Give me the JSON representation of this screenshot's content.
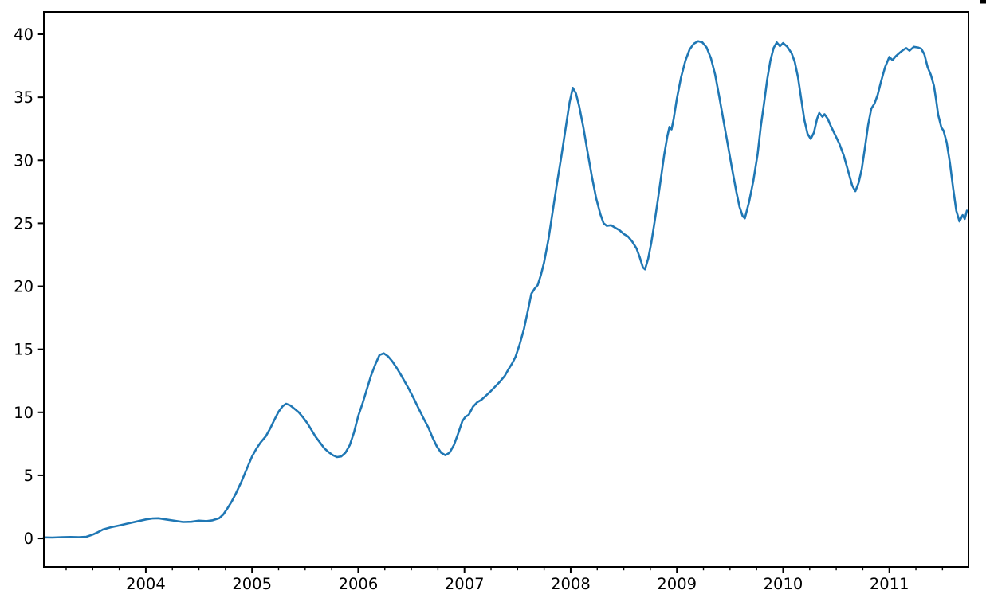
{
  "figure": {
    "background_color": "#ffffff",
    "spine_color": "#000000",
    "tick_color": "#000000",
    "corner_artifact_color": "#000000"
  },
  "chart_data": {
    "type": "line",
    "title": "",
    "xlabel": "",
    "ylabel": "",
    "grid": false,
    "legend": "none",
    "line_color": "#1f77b4",
    "line_width": 2.6,
    "xlim": [
      2003.04,
      2011.745
    ],
    "ylim": [
      -2.27,
      41.77
    ],
    "x_ticks": [
      2004,
      2005,
      2006,
      2007,
      2008,
      2009,
      2010,
      2011
    ],
    "x_tick_labels": [
      "2004",
      "2005",
      "2006",
      "2007",
      "2008",
      "2009",
      "2010",
      "2011"
    ],
    "x_minor_tick_interval": 0.25,
    "y_ticks": [
      0,
      5,
      10,
      15,
      20,
      25,
      30,
      35,
      40
    ],
    "y_tick_labels": [
      "0",
      "5",
      "10",
      "15",
      "20",
      "25",
      "30",
      "35",
      "40"
    ],
    "series": [
      {
        "name": "series-1",
        "points": [
          [
            2003.04,
            0.08
          ],
          [
            2003.12,
            0.07
          ],
          [
            2003.21,
            0.1
          ],
          [
            2003.29,
            0.11
          ],
          [
            2003.37,
            0.1
          ],
          [
            2003.44,
            0.13
          ],
          [
            2003.5,
            0.3
          ],
          [
            2003.55,
            0.5
          ],
          [
            2003.6,
            0.72
          ],
          [
            2003.67,
            0.88
          ],
          [
            2003.75,
            1.02
          ],
          [
            2003.83,
            1.18
          ],
          [
            2003.92,
            1.35
          ],
          [
            2004.0,
            1.5
          ],
          [
            2004.06,
            1.58
          ],
          [
            2004.12,
            1.6
          ],
          [
            2004.19,
            1.5
          ],
          [
            2004.27,
            1.4
          ],
          [
            2004.35,
            1.3
          ],
          [
            2004.43,
            1.32
          ],
          [
            2004.5,
            1.41
          ],
          [
            2004.57,
            1.37
          ],
          [
            2004.63,
            1.44
          ],
          [
            2004.69,
            1.6
          ],
          [
            2004.73,
            1.9
          ],
          [
            2004.77,
            2.4
          ],
          [
            2004.81,
            2.95
          ],
          [
            2004.85,
            3.6
          ],
          [
            2004.9,
            4.5
          ],
          [
            2004.95,
            5.5
          ],
          [
            2005.0,
            6.5
          ],
          [
            2005.04,
            7.1
          ],
          [
            2005.08,
            7.6
          ],
          [
            2005.13,
            8.1
          ],
          [
            2005.17,
            8.7
          ],
          [
            2005.21,
            9.4
          ],
          [
            2005.25,
            10.05
          ],
          [
            2005.29,
            10.5
          ],
          [
            2005.32,
            10.68
          ],
          [
            2005.36,
            10.55
          ],
          [
            2005.4,
            10.28
          ],
          [
            2005.44,
            10.0
          ],
          [
            2005.48,
            9.6
          ],
          [
            2005.52,
            9.15
          ],
          [
            2005.56,
            8.6
          ],
          [
            2005.6,
            8.05
          ],
          [
            2005.64,
            7.6
          ],
          [
            2005.68,
            7.15
          ],
          [
            2005.72,
            6.85
          ],
          [
            2005.76,
            6.6
          ],
          [
            2005.8,
            6.45
          ],
          [
            2005.84,
            6.5
          ],
          [
            2005.88,
            6.8
          ],
          [
            2005.92,
            7.4
          ],
          [
            2005.96,
            8.4
          ],
          [
            2006.0,
            9.7
          ],
          [
            2006.04,
            10.7
          ],
          [
            2006.08,
            11.8
          ],
          [
            2006.12,
            12.9
          ],
          [
            2006.16,
            13.8
          ],
          [
            2006.2,
            14.55
          ],
          [
            2006.24,
            14.68
          ],
          [
            2006.28,
            14.45
          ],
          [
            2006.32,
            14.05
          ],
          [
            2006.36,
            13.55
          ],
          [
            2006.4,
            13.0
          ],
          [
            2006.44,
            12.4
          ],
          [
            2006.48,
            11.8
          ],
          [
            2006.52,
            11.15
          ],
          [
            2006.56,
            10.45
          ],
          [
            2006.61,
            9.6
          ],
          [
            2006.66,
            8.8
          ],
          [
            2006.7,
            8.0
          ],
          [
            2006.74,
            7.3
          ],
          [
            2006.78,
            6.8
          ],
          [
            2006.82,
            6.6
          ],
          [
            2006.86,
            6.8
          ],
          [
            2006.9,
            7.4
          ],
          [
            2006.94,
            8.3
          ],
          [
            2006.98,
            9.3
          ],
          [
            2007.01,
            9.65
          ],
          [
            2007.04,
            9.8
          ],
          [
            2007.08,
            10.45
          ],
          [
            2007.12,
            10.8
          ],
          [
            2007.16,
            11.0
          ],
          [
            2007.2,
            11.3
          ],
          [
            2007.25,
            11.7
          ],
          [
            2007.29,
            12.05
          ],
          [
            2007.33,
            12.4
          ],
          [
            2007.38,
            12.9
          ],
          [
            2007.42,
            13.5
          ],
          [
            2007.45,
            13.9
          ],
          [
            2007.48,
            14.4
          ],
          [
            2007.52,
            15.4
          ],
          [
            2007.56,
            16.6
          ],
          [
            2007.6,
            18.2
          ],
          [
            2007.63,
            19.4
          ],
          [
            2007.66,
            19.8
          ],
          [
            2007.69,
            20.1
          ],
          [
            2007.72,
            20.9
          ],
          [
            2007.75,
            21.9
          ],
          [
            2007.79,
            23.7
          ],
          [
            2007.83,
            25.9
          ],
          [
            2007.87,
            28.1
          ],
          [
            2007.91,
            30.2
          ],
          [
            2007.95,
            32.4
          ],
          [
            2007.99,
            34.6
          ],
          [
            2008.02,
            35.75
          ],
          [
            2008.05,
            35.3
          ],
          [
            2008.08,
            34.3
          ],
          [
            2008.12,
            32.6
          ],
          [
            2008.16,
            30.6
          ],
          [
            2008.2,
            28.7
          ],
          [
            2008.24,
            27.0
          ],
          [
            2008.28,
            25.7
          ],
          [
            2008.31,
            25.0
          ],
          [
            2008.34,
            24.8
          ],
          [
            2008.38,
            24.85
          ],
          [
            2008.42,
            24.65
          ],
          [
            2008.46,
            24.45
          ],
          [
            2008.5,
            24.15
          ],
          [
            2008.54,
            23.95
          ],
          [
            2008.58,
            23.55
          ],
          [
            2008.62,
            23.0
          ],
          [
            2008.65,
            22.3
          ],
          [
            2008.68,
            21.5
          ],
          [
            2008.7,
            21.35
          ],
          [
            2008.73,
            22.2
          ],
          [
            2008.76,
            23.5
          ],
          [
            2008.79,
            25.1
          ],
          [
            2008.82,
            26.8
          ],
          [
            2008.85,
            28.6
          ],
          [
            2008.88,
            30.4
          ],
          [
            2008.91,
            31.9
          ],
          [
            2008.93,
            32.65
          ],
          [
            2008.95,
            32.45
          ],
          [
            2008.97,
            33.3
          ],
          [
            2009.0,
            34.9
          ],
          [
            2009.04,
            36.6
          ],
          [
            2009.08,
            37.9
          ],
          [
            2009.12,
            38.8
          ],
          [
            2009.16,
            39.25
          ],
          [
            2009.2,
            39.45
          ],
          [
            2009.24,
            39.35
          ],
          [
            2009.28,
            38.95
          ],
          [
            2009.32,
            38.1
          ],
          [
            2009.36,
            36.8
          ],
          [
            2009.4,
            35.0
          ],
          [
            2009.44,
            33.1
          ],
          [
            2009.48,
            31.2
          ],
          [
            2009.52,
            29.3
          ],
          [
            2009.56,
            27.5
          ],
          [
            2009.59,
            26.3
          ],
          [
            2009.62,
            25.55
          ],
          [
            2009.64,
            25.4
          ],
          [
            2009.68,
            26.7
          ],
          [
            2009.72,
            28.4
          ],
          [
            2009.76,
            30.5
          ],
          [
            2009.79,
            32.7
          ],
          [
            2009.82,
            34.5
          ],
          [
            2009.85,
            36.4
          ],
          [
            2009.88,
            37.9
          ],
          [
            2009.91,
            38.9
          ],
          [
            2009.94,
            39.35
          ],
          [
            2009.97,
            39.05
          ],
          [
            2010.0,
            39.3
          ],
          [
            2010.04,
            39.0
          ],
          [
            2010.08,
            38.5
          ],
          [
            2010.11,
            37.8
          ],
          [
            2010.14,
            36.6
          ],
          [
            2010.17,
            34.9
          ],
          [
            2010.2,
            33.2
          ],
          [
            2010.23,
            32.1
          ],
          [
            2010.26,
            31.7
          ],
          [
            2010.29,
            32.2
          ],
          [
            2010.32,
            33.3
          ],
          [
            2010.34,
            33.75
          ],
          [
            2010.37,
            33.45
          ],
          [
            2010.39,
            33.65
          ],
          [
            2010.42,
            33.3
          ],
          [
            2010.45,
            32.7
          ],
          [
            2010.49,
            32.0
          ],
          [
            2010.53,
            31.3
          ],
          [
            2010.57,
            30.4
          ],
          [
            2010.61,
            29.2
          ],
          [
            2010.65,
            28.0
          ],
          [
            2010.68,
            27.55
          ],
          [
            2010.71,
            28.2
          ],
          [
            2010.74,
            29.3
          ],
          [
            2010.77,
            31.0
          ],
          [
            2010.8,
            32.8
          ],
          [
            2010.83,
            34.1
          ],
          [
            2010.86,
            34.5
          ],
          [
            2010.89,
            35.2
          ],
          [
            2010.92,
            36.2
          ],
          [
            2010.96,
            37.4
          ],
          [
            2011.0,
            38.2
          ],
          [
            2011.03,
            37.95
          ],
          [
            2011.06,
            38.25
          ],
          [
            2011.1,
            38.55
          ],
          [
            2011.13,
            38.75
          ],
          [
            2011.16,
            38.9
          ],
          [
            2011.19,
            38.7
          ],
          [
            2011.23,
            39.0
          ],
          [
            2011.27,
            38.95
          ],
          [
            2011.3,
            38.85
          ],
          [
            2011.33,
            38.4
          ],
          [
            2011.36,
            37.4
          ],
          [
            2011.39,
            36.8
          ],
          [
            2011.42,
            35.9
          ],
          [
            2011.44,
            34.8
          ],
          [
            2011.46,
            33.6
          ],
          [
            2011.49,
            32.6
          ],
          [
            2011.51,
            32.35
          ],
          [
            2011.54,
            31.4
          ],
          [
            2011.57,
            29.8
          ],
          [
            2011.6,
            27.8
          ],
          [
            2011.63,
            26.0
          ],
          [
            2011.66,
            25.15
          ],
          [
            2011.69,
            25.65
          ],
          [
            2011.71,
            25.35
          ],
          [
            2011.73,
            26.0
          ]
        ]
      }
    ]
  }
}
